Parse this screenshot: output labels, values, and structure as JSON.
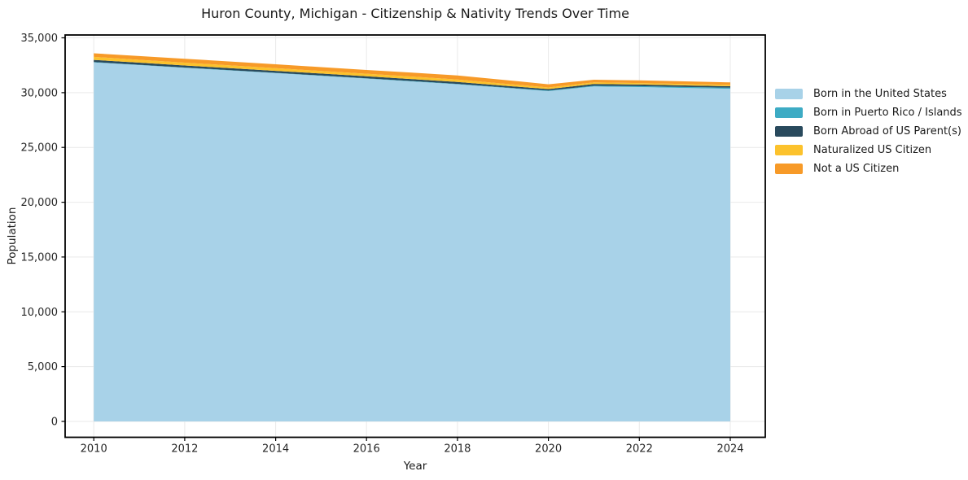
{
  "chart": {
    "title": "Huron County, Michigan - Citizenship & Nativity Trends Over Time",
    "xlabel": "Year",
    "ylabel": "Population"
  },
  "chart_data": {
    "type": "area",
    "stacked": true,
    "title": "Huron County, Michigan - Citizenship & Nativity Trends Over Time",
    "xlabel": "Year",
    "ylabel": "Population",
    "x": [
      2010,
      2011,
      2012,
      2013,
      2014,
      2015,
      2016,
      2017,
      2018,
      2019,
      2020,
      2021,
      2022,
      2023,
      2024
    ],
    "series": [
      {
        "name": "Born in the United States",
        "color": "#a8d2e8",
        "values": [
          32760,
          32510,
          32260,
          32020,
          31780,
          31530,
          31280,
          31020,
          30760,
          30450,
          30140,
          30560,
          30510,
          30430,
          30350
        ]
      },
      {
        "name": "Born in Puerto Rico / Islands",
        "color": "#3dabc4",
        "values": [
          30,
          30,
          30,
          30,
          30,
          30,
          30,
          40,
          40,
          40,
          50,
          70,
          80,
          90,
          100
        ]
      },
      {
        "name": "Born Abroad of US Parent(s)",
        "color": "#294a5d",
        "values": [
          200,
          195,
          190,
          185,
          180,
          185,
          190,
          180,
          170,
          150,
          130,
          160,
          150,
          140,
          130
        ]
      },
      {
        "name": "Naturalized US Citizen",
        "color": "#fcc22c",
        "values": [
          270,
          260,
          255,
          250,
          245,
          235,
          230,
          225,
          220,
          190,
          150,
          140,
          135,
          130,
          130
        ]
      },
      {
        "name": "Not a US Citizen",
        "color": "#f79a28",
        "values": [
          330,
          345,
          355,
          355,
          355,
          350,
          340,
          355,
          380,
          340,
          290,
          250,
          245,
          240,
          220
        ]
      }
    ],
    "xticks": {
      "values": [
        2010,
        2012,
        2014,
        2016,
        2018,
        2020,
        2022,
        2024
      ],
      "labels": [
        "2010",
        "2012",
        "2014",
        "2016",
        "2018",
        "2020",
        "2022",
        "2024"
      ]
    },
    "yticks": {
      "values": [
        0,
        5000,
        10000,
        15000,
        20000,
        25000,
        30000,
        35000
      ],
      "labels": [
        "0",
        "5,000",
        "10,000",
        "15,000",
        "20,000",
        "25,000",
        "30,000",
        "35,000"
      ]
    },
    "xlim": [
      2009.37,
      2024.77
    ],
    "ylim": [
      -1447,
      35260
    ],
    "grid": true,
    "grid_color": "#e9e9e9",
    "legend_position": "right"
  },
  "style_colors": {
    "spine": "#000000",
    "tick": "#000000",
    "tick_label": "#262626",
    "background": "#ffffff"
  }
}
